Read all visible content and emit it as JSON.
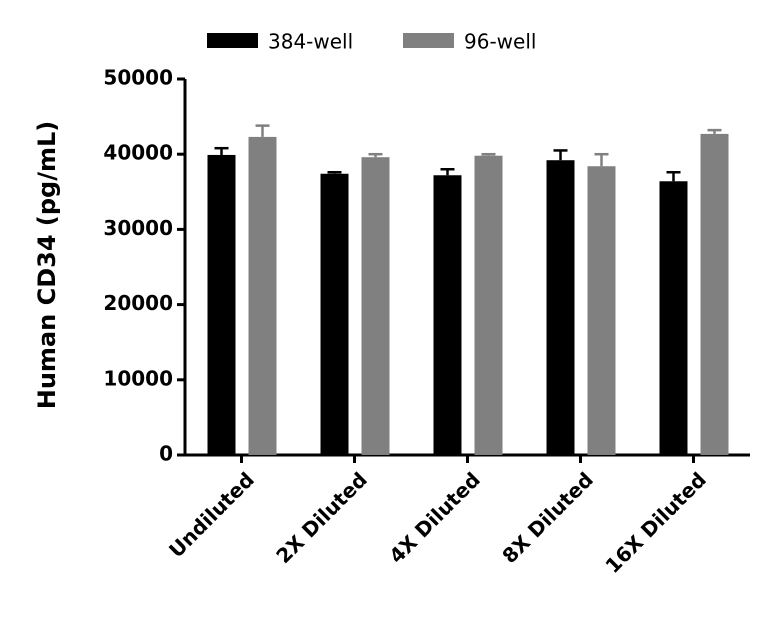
{
  "chart_data": {
    "type": "bar",
    "y_label": "Human CD34 (pg/mL)",
    "categories": [
      "Undiluted",
      "2X Diluted",
      "4X Diluted",
      "8X Diluted",
      "16X Diluted"
    ],
    "series": [
      {
        "name": "384-well",
        "color": "#000000",
        "values": [
          39900,
          37400,
          37200,
          39200,
          36400
        ],
        "errors": [
          900,
          200,
          800,
          1300,
          1200
        ]
      },
      {
        "name": "96-well",
        "color": "#808080",
        "values": [
          42300,
          39600,
          39800,
          38400,
          42700
        ],
        "errors": [
          1500,
          400,
          200,
          1600,
          500
        ]
      }
    ],
    "ylim": [
      0,
      50000
    ],
    "yticks": [
      0,
      10000,
      20000,
      30000,
      40000,
      50000
    ],
    "legend": "top"
  }
}
